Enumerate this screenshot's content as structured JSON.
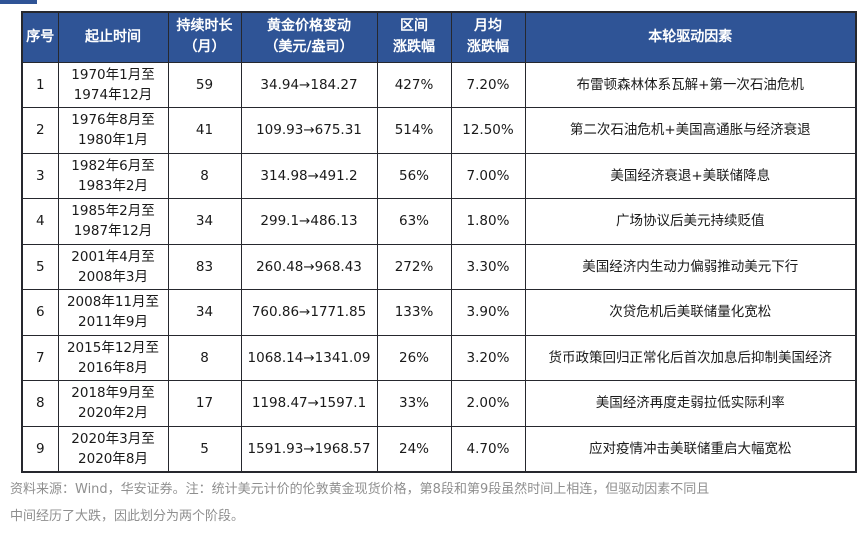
{
  "colors": {
    "header_bg": "#2F5496",
    "header_text": "#ffffff",
    "border": "#26282e",
    "body_text": "#1a1a1a",
    "note_text": "#8f8f8f"
  },
  "table": {
    "columns": [
      "序号",
      "起止时间",
      "持续时长\n（月）",
      "黄金价格变动\n（美元/盎司）",
      "区间\n涨跌幅",
      "月均\n涨跌幅",
      "本轮驱动因素"
    ],
    "rows": [
      [
        "1",
        "1970年1月至\n1974年12月",
        "59",
        "34.94→184.27",
        "427%",
        "7.20%",
        "布雷顿森林体系瓦解+第一次石油危机"
      ],
      [
        "2",
        "1976年8月至\n1980年1月",
        "41",
        "109.93→675.31",
        "514%",
        "12.50%",
        "第二次石油危机+美国高通胀与经济衰退"
      ],
      [
        "3",
        "1982年6月至\n1983年2月",
        "8",
        "314.98→491.2",
        "56%",
        "7.00%",
        "美国经济衰退+美联储降息"
      ],
      [
        "4",
        "1985年2月至\n1987年12月",
        "34",
        "299.1→486.13",
        "63%",
        "1.80%",
        "广场协议后美元持续贬值"
      ],
      [
        "5",
        "2001年4月至\n2008年3月",
        "83",
        "260.48→968.43",
        "272%",
        "3.30%",
        "美国经济内生动力偏弱推动美元下行"
      ],
      [
        "6",
        "2008年11月至\n2011年9月",
        "34",
        "760.86→1771.85",
        "133%",
        "3.90%",
        "次贷危机后美联储量化宽松"
      ],
      [
        "7",
        "2015年12月至\n2016年8月",
        "8",
        "1068.14→1341.09",
        "26%",
        "3.20%",
        "货币政策回归正常化后首次加息后抑制美国经济"
      ],
      [
        "8",
        "2018年9月至\n2020年2月",
        "17",
        "1198.47→1597.1",
        "33%",
        "2.00%",
        "美国经济再度走弱拉低实际利率"
      ],
      [
        "9",
        "2020年3月至\n2020年8月",
        "5",
        "1591.93→1968.57",
        "24%",
        "4.70%",
        "应对疫情冲击美联储重启大幅宽松"
      ]
    ]
  },
  "footer": {
    "line1": "资料来源：Wind，华安证券。注：统计美元计价的伦敦黄金现货价格，第8段和第9段虽然时间上相连，但驱动因素不同且",
    "line2": "中间经历了大跌，因此划分为两个阶段。"
  }
}
